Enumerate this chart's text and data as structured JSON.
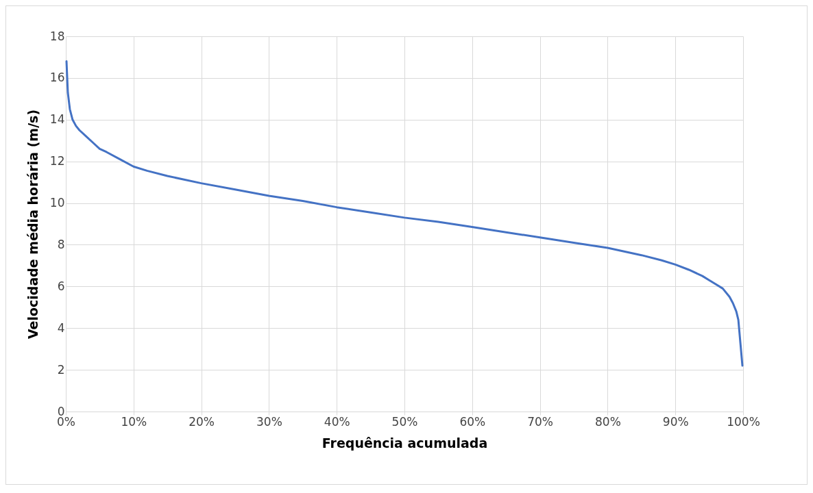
{
  "chart_data": {
    "type": "line",
    "xlabel": "Frequência acumulada",
    "ylabel": "Velocidade média horária (m/s)",
    "x": [
      0.1,
      0.3,
      0.6,
      1,
      1.5,
      2,
      3,
      4,
      5,
      6,
      8,
      10,
      12,
      15,
      20,
      25,
      30,
      35,
      40,
      45,
      50,
      55,
      60,
      65,
      70,
      75,
      80,
      85,
      88,
      90,
      92,
      94,
      95,
      96,
      97,
      98,
      98.5,
      99,
      99.3,
      99.6,
      99.9
    ],
    "series": [
      {
        "color": "#4472c4",
        "values": [
          16.8,
          15.3,
          14.5,
          14.0,
          13.7,
          13.5,
          13.2,
          12.9,
          12.6,
          12.45,
          12.1,
          11.75,
          11.55,
          11.3,
          10.95,
          10.65,
          10.35,
          10.1,
          9.8,
          9.55,
          9.3,
          9.1,
          8.85,
          8.6,
          8.35,
          8.1,
          7.85,
          7.5,
          7.25,
          7.05,
          6.8,
          6.5,
          6.3,
          6.1,
          5.9,
          5.5,
          5.2,
          4.8,
          4.4,
          3.3,
          2.2
        ]
      }
    ],
    "xlim": [
      0,
      100
    ],
    "xticks": [
      {
        "value": 0,
        "label": "0%"
      },
      {
        "value": 10,
        "label": "10%"
      },
      {
        "value": 20,
        "label": "20%"
      },
      {
        "value": 30,
        "label": "30%"
      },
      {
        "value": 40,
        "label": "40%"
      },
      {
        "value": 50,
        "label": "50%"
      },
      {
        "value": 60,
        "label": "60%"
      },
      {
        "value": 70,
        "label": "70%"
      },
      {
        "value": 80,
        "label": "80%"
      },
      {
        "value": 90,
        "label": "90%"
      },
      {
        "value": 100,
        "label": "100%"
      }
    ],
    "ylim": [
      0,
      18
    ],
    "yticks": [
      0,
      2,
      4,
      6,
      8,
      10,
      12,
      14,
      16,
      18
    ],
    "grid": true,
    "marker": "none",
    "line_style": "solid"
  }
}
